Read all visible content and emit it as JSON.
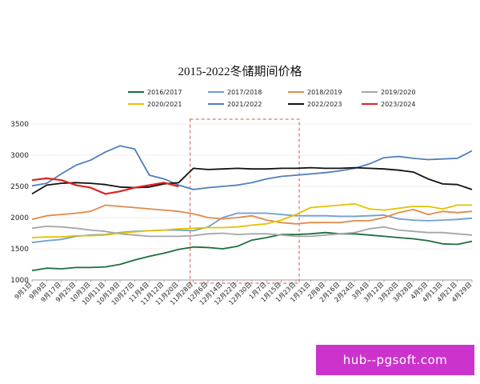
{
  "chart_data": {
    "type": "line",
    "title": "2015-2022冬储期间价格",
    "xlabel": "",
    "ylabel": "",
    "ylim": [
      1000,
      3500
    ],
    "y_ticks": [
      1000,
      1500,
      2000,
      2500,
      3000,
      3500
    ],
    "x_tick_labels": [
      "9月1日",
      "9月9日",
      "9月17日",
      "9月25日",
      "10月3日",
      "10月11日",
      "10月19日",
      "10月27日",
      "11月4日",
      "11月12日",
      "11月20日",
      "11月28日",
      "12月6日",
      "12月14日",
      "12月22日",
      "12月30日",
      "1月7日",
      "1月15日",
      "1月23日",
      "1月31日",
      "2月8日",
      "2月16日",
      "2月24日",
      "3月4日",
      "3月12日",
      "3月20日",
      "3月28日",
      "4月5日",
      "4月13日",
      "4月21日",
      "4月29日"
    ],
    "highlight_range": [
      "11月28日",
      "1月23日"
    ],
    "legend_position": "top",
    "series": [
      {
        "name": "2016/2017",
        "color": "#1e6e3c",
        "values": [
          1150,
          1190,
          1180,
          1200,
          1200,
          1210,
          1250,
          1320,
          1380,
          1430,
          1490,
          1530,
          1520,
          1500,
          1540,
          1640,
          1680,
          1730,
          1730,
          1740,
          1760,
          1740,
          1740,
          1720,
          1700,
          1680,
          1660,
          1630,
          1580,
          1570,
          1620
        ]
      },
      {
        "name": "2017/2018",
        "color": "#6f9fd0",
        "values": [
          1600,
          1630,
          1650,
          1700,
          1720,
          1730,
          1760,
          1780,
          1790,
          1800,
          1800,
          1790,
          1850,
          2000,
          2070,
          2070,
          2070,
          2050,
          2030,
          2030,
          2030,
          2020,
          2020,
          2030,
          2040,
          1980,
          1960,
          1950,
          1960,
          1970,
          1990
        ]
      },
      {
        "name": "2018/2019",
        "color": "#e08b4a",
        "values": [
          1970,
          2030,
          2050,
          2070,
          2100,
          2200,
          2180,
          2160,
          2140,
          2120,
          2100,
          2060,
          2000,
          1980,
          2000,
          2030,
          1960,
          1920,
          1900,
          1920,
          1920,
          1920,
          1950,
          1950,
          2000,
          2080,
          2130,
          2050,
          2100,
          2080,
          2100
        ]
      },
      {
        "name": "2019/2020",
        "color": "#a6a6a6",
        "values": [
          1830,
          1860,
          1850,
          1830,
          1800,
          1780,
          1740,
          1720,
          1700,
          1700,
          1700,
          1710,
          1740,
          1750,
          1730,
          1740,
          1740,
          1720,
          1700,
          1700,
          1720,
          1740,
          1760,
          1820,
          1850,
          1800,
          1780,
          1760,
          1760,
          1740,
          1720
        ]
      },
      {
        "name": "2020/2021",
        "color": "#e6c200",
        "values": [
          1680,
          1690,
          1690,
          1710,
          1710,
          1720,
          1750,
          1770,
          1790,
          1800,
          1820,
          1830,
          1840,
          1840,
          1850,
          1880,
          1900,
          1960,
          2050,
          2160,
          2180,
          2200,
          2220,
          2140,
          2120,
          2150,
          2180,
          2180,
          2140,
          2200,
          2200
        ]
      },
      {
        "name": "2021/2022",
        "color": "#4f7fb8",
        "values": [
          2510,
          2550,
          2700,
          2840,
          2920,
          3050,
          3150,
          3100,
          2680,
          2620,
          2520,
          2450,
          2480,
          2500,
          2520,
          2560,
          2620,
          2660,
          2680,
          2700,
          2720,
          2750,
          2790,
          2860,
          2960,
          2980,
          2950,
          2930,
          2940,
          2950,
          3070
        ]
      },
      {
        "name": "2022/2023",
        "color": "#111111",
        "values": [
          2380,
          2520,
          2550,
          2560,
          2550,
          2530,
          2490,
          2480,
          2490,
          2540,
          2560,
          2790,
          2770,
          2780,
          2790,
          2780,
          2780,
          2790,
          2790,
          2800,
          2790,
          2790,
          2800,
          2790,
          2780,
          2760,
          2730,
          2620,
          2540,
          2530,
          2450
        ]
      },
      {
        "name": "2023/2024",
        "color": "#dd2222",
        "values": [
          2600,
          2630,
          2600,
          2520,
          2480,
          2380,
          2420,
          2480,
          2520,
          2560,
          2500,
          null,
          null,
          null,
          null,
          null,
          null,
          null,
          null,
          null,
          null,
          null,
          null,
          null,
          null,
          null,
          null,
          null,
          null,
          null,
          null
        ]
      }
    ]
  },
  "watermark": {
    "text": "hub--pgsoft.com"
  }
}
